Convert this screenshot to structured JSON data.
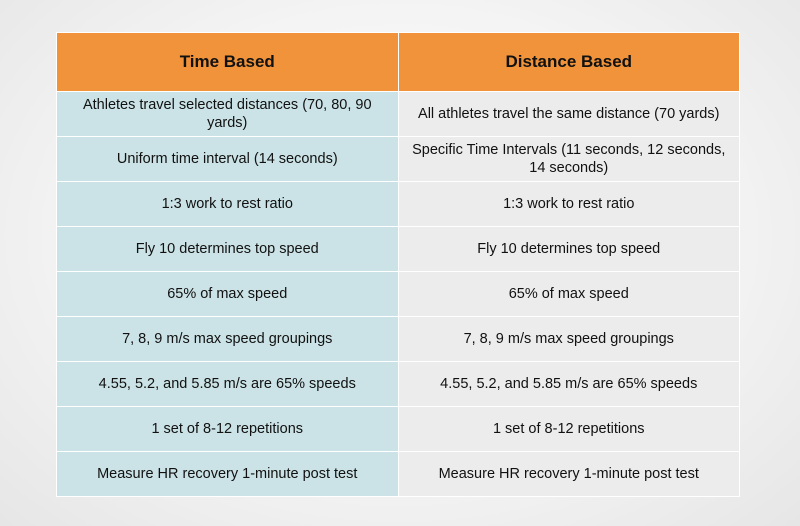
{
  "table": {
    "headers": [
      "Time Based",
      "Distance Based"
    ],
    "rows": [
      [
        "Athletes travel selected distances (70, 80, 90 yards)",
        "All athletes travel the same distance (70 yards)"
      ],
      [
        "Uniform time interval (14 seconds)",
        "Specific Time Intervals (11 seconds, 12 seconds, 14 seconds)"
      ],
      [
        "1:3 work to rest ratio",
        "1:3 work to rest ratio"
      ],
      [
        "Fly 10 determines top speed",
        "Fly 10 determines top speed"
      ],
      [
        "65% of max speed",
        "65% of max speed"
      ],
      [
        "7, 8, 9 m/s max speed groupings",
        "7, 8, 9 m/s max speed groupings"
      ],
      [
        "4.55, 5.2, and 5.85 m/s are 65% speeds",
        "4.55, 5.2, and 5.85 m/s are 65% speeds"
      ],
      [
        "1 set of 8-12 repetitions",
        "1 set of 8-12 repetitions"
      ],
      [
        "Measure HR recovery 1-minute post test",
        "Measure HR recovery 1-minute post test"
      ]
    ]
  },
  "colors": {
    "header_bg": "#f0933a",
    "col_a_bg": "#cbe3e6",
    "col_b_bg": "#ececec"
  }
}
